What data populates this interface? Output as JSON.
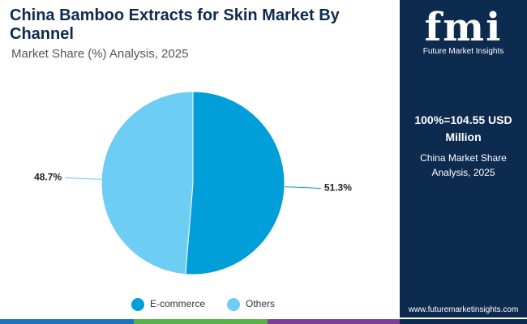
{
  "chart_data": {
    "type": "pie",
    "title": "China Bamboo Extracts for Skin Market By Channel",
    "subtitle": "Market Share (%) Analysis, 2025",
    "categories": [
      "E-commerce",
      "Others"
    ],
    "values": [
      51.3,
      48.7
    ],
    "value_labels": [
      "51.3%",
      "48.7%"
    ],
    "colors": [
      "#009fd9",
      "#6dcdf2"
    ],
    "legend": "bottom"
  },
  "sidebar": {
    "logo": "fmi",
    "brand": "Future Market Insights",
    "total": "100%=104.55 USD Million",
    "note": "China Market Share Analysis, 2025",
    "url": "www.futuremarketinsights.com"
  }
}
